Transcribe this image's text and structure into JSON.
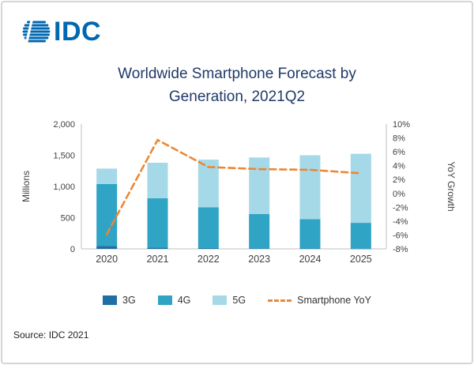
{
  "logo": {
    "text": "IDC"
  },
  "title": {
    "line1": "Worldwide Smartphone Forecast by",
    "line2": "Generation, 2021Q2"
  },
  "source": "Source: IDC 2021",
  "chart_data": {
    "type": "bar",
    "subtype": "stacked-bars-with-line",
    "title": "Worldwide Smartphone Forecast by Generation, 2021Q2",
    "categories": [
      "2020",
      "2021",
      "2022",
      "2023",
      "2024",
      "2025"
    ],
    "series": [
      {
        "name": "3G",
        "color": "#1d6fa5",
        "values": [
          48,
          22,
          12,
          8,
          5,
          3
        ]
      },
      {
        "name": "4G",
        "color": "#2fa4c5",
        "values": [
          990,
          790,
          655,
          552,
          471,
          414
        ]
      },
      {
        "name": "5G",
        "color": "#a6d9e7",
        "values": [
          248,
          568,
          762,
          904,
          1024,
          1107
        ]
      }
    ],
    "line_series": {
      "name": "Smartphone YoY",
      "color": "#ed8733",
      "dashed": true,
      "values": [
        -5.9,
        7.7,
        3.8,
        3.5,
        3.4,
        2.9
      ]
    },
    "left_axis": {
      "label": "Millions",
      "min": 0,
      "max": 2000,
      "tick_values": [
        0,
        500,
        1000,
        1500,
        2000
      ],
      "ticks": [
        "0",
        "500",
        "1,000",
        "1,500",
        "2,000"
      ]
    },
    "right_axis": {
      "label": "YoY Growth",
      "min": -8,
      "max": 10,
      "tick_values": [
        -8,
        -6,
        -4,
        -2,
        0,
        2,
        4,
        6,
        8,
        10
      ],
      "ticks": [
        "-8%",
        "-6%",
        "-4%",
        "-2%",
        "0%",
        "2%",
        "4%",
        "6%",
        "8%",
        "10%"
      ]
    },
    "legend": [
      "3G",
      "4G",
      "5G",
      "Smartphone YoY"
    ],
    "legend_position": "bottom",
    "grid": false
  },
  "colors": {
    "title": "#1f3a68",
    "logo": "#0067b1",
    "axis_text": "#3f3f3f",
    "axis_line": "#bfbfbf"
  }
}
